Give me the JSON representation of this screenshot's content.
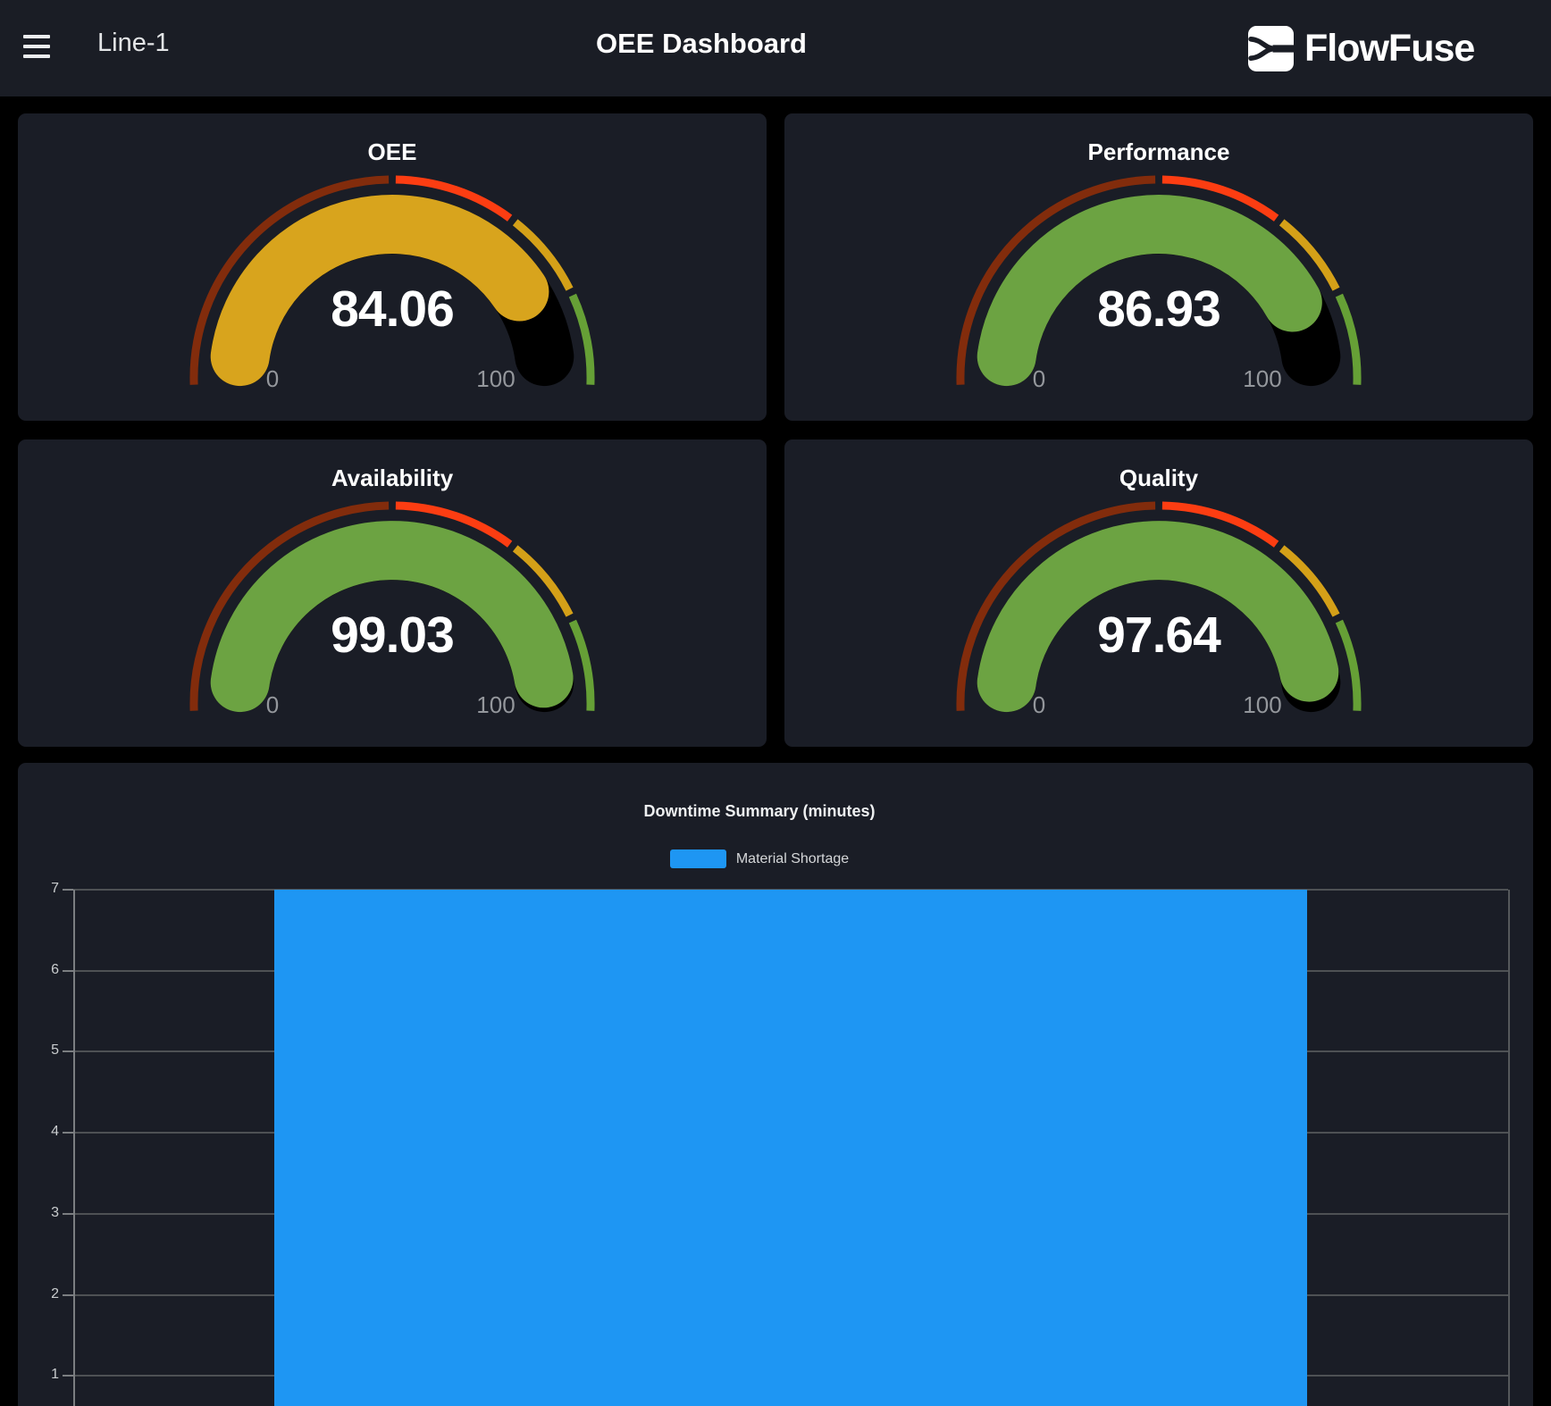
{
  "header": {
    "menu_icon": "hamburger-icon",
    "page_label": "Line-1",
    "title": "OEE Dashboard",
    "brand_name": "FlowFuse"
  },
  "gauges": [
    {
      "title": "OEE",
      "value": "84.06",
      "value_num": 84.06,
      "fill_color": "#d8a41d",
      "min_label": "0",
      "max_label": "100"
    },
    {
      "title": "Performance",
      "value": "86.93",
      "value_num": 86.93,
      "fill_color": "#6ca342",
      "min_label": "0",
      "max_label": "100"
    },
    {
      "title": "Availability",
      "value": "99.03",
      "value_num": 99.03,
      "fill_color": "#6ca342",
      "min_label": "0",
      "max_label": "100"
    },
    {
      "title": "Quality",
      "value": "97.64",
      "value_num": 97.64,
      "fill_color": "#6ca342",
      "min_label": "0",
      "max_label": "100"
    }
  ],
  "gauge_style": {
    "min": 0,
    "max": 100,
    "track_color": "#000000",
    "segments": [
      {
        "color": "#822c0c",
        "to": 0.5
      },
      {
        "color": "#fc3d12",
        "to": 0.703
      },
      {
        "color": "#d4a018",
        "to": 0.85
      },
      {
        "color": "#66a036",
        "to": 1
      }
    ]
  },
  "chart_data": {
    "type": "bar",
    "title": "Downtime Summary (minutes)",
    "categories": [
      "Material Shortage"
    ],
    "series": [
      {
        "name": "Material Shortage",
        "values": [
          7
        ],
        "color": "#1e96f3"
      }
    ],
    "legend": [
      "Material Shortage"
    ],
    "legend_position": "top",
    "grid": true,
    "ylim": [
      0,
      7
    ],
    "yticks": [
      7,
      6,
      5,
      4,
      3,
      2,
      1
    ],
    "xlabel": "",
    "ylabel": ""
  },
  "colors": {
    "page_bg": "#000000",
    "card_bg": "#1a1d26",
    "header_bg": "#1a1d25",
    "bar_blue": "#1e96f3",
    "gauge_track": "#000000",
    "text_primary": "#ffffff",
    "text_muted": "#94979c"
  }
}
